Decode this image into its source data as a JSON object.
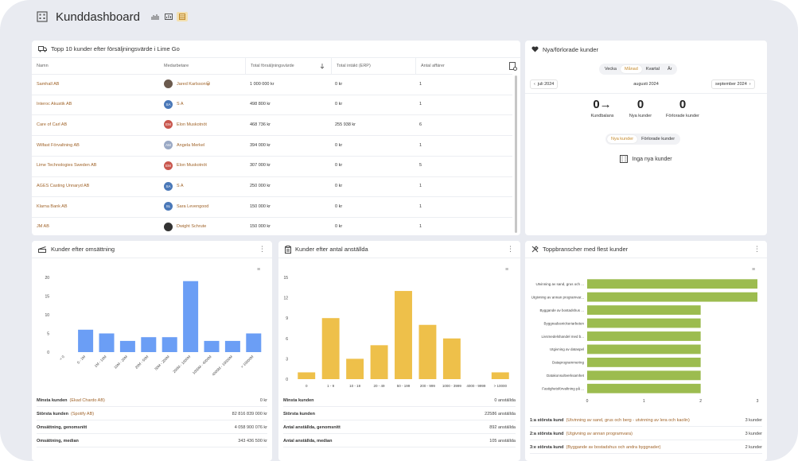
{
  "page": {
    "title": "Kunddashboard"
  },
  "top10": {
    "title": "Topp 10 kunder efter försäljningsvärde i Lime Go",
    "columns": [
      "Namn",
      "Medarbetare",
      "Total försäljningsvärde",
      "Total intäkt (ERP)",
      "Antal affärer"
    ],
    "rows": [
      {
        "name": "Samhall AB",
        "avatar": "",
        "avatar_color": "#6b5a4e",
        "employee": "Jared Karlsson😀",
        "total": "1 000 000 kr",
        "income": "0 kr",
        "deals": "1"
      },
      {
        "name": "Interoc Akustik AB",
        "avatar": "SA",
        "avatar_color": "#4a78b8",
        "employee": "S A",
        "total": "498 800 kr",
        "income": "0 kr",
        "deals": "1"
      },
      {
        "name": "Care of Carl AB",
        "avatar": "EM",
        "avatar_color": "#c9574e",
        "employee": "Elon Muskotnöt",
        "total": "468 736 kr",
        "income": "255 938 kr",
        "deals": "6"
      },
      {
        "name": "Wilfast Förvaltning AB",
        "avatar": "AM",
        "avatar_color": "#9aa9c5",
        "employee": "Angela Merkel",
        "total": "394 000 kr",
        "income": "0 kr",
        "deals": "1"
      },
      {
        "name": "Lime Technologies Sweden AB",
        "avatar": "EM",
        "avatar_color": "#c9574e",
        "employee": "Elon Muskotnöt",
        "total": "307 000 kr",
        "income": "0 kr",
        "deals": "5"
      },
      {
        "name": "AGES Casting Unnaryd AB",
        "avatar": "SA",
        "avatar_color": "#4a78b8",
        "employee": "S A",
        "total": "250 000 kr",
        "income": "0 kr",
        "deals": "1"
      },
      {
        "name": "Klarna Bank AB",
        "avatar": "SL",
        "avatar_color": "#4a78b8",
        "employee": "Sara Levengood",
        "total": "150 000 kr",
        "income": "0 kr",
        "deals": "1"
      },
      {
        "name": "JM AB",
        "avatar": "",
        "avatar_color": "#333333",
        "employee": "Dwight Schrute",
        "total": "150 000 kr",
        "income": "0 kr",
        "deals": "1"
      }
    ]
  },
  "newlost": {
    "title": "Nya/förlorade kunder",
    "periods": [
      "Vecka",
      "Månad",
      "Kvartal",
      "År"
    ],
    "active_period": "Månad",
    "prev": "juli 2024",
    "current": "augusti 2024",
    "next": "september 2024",
    "stats": [
      {
        "value": "0→",
        "label": "Kundbalans"
      },
      {
        "value": "0",
        "label": "Nya kunder"
      },
      {
        "value": "0",
        "label": "Förlorade kunder"
      }
    ],
    "tabs": [
      "Nya kunder",
      "Förlorade kunder"
    ],
    "active_tab": "Nya kunder",
    "empty": "Inga nya kunder"
  },
  "revenue": {
    "title": "Kunder efter omsättning",
    "summary": [
      {
        "label": "Minsta kunden",
        "link": "(Ekad Chardo AB)",
        "value": "0 kr"
      },
      {
        "label": "Största kunden",
        "link": "(Spotify AB)",
        "value": "82 816 839 000 kr"
      },
      {
        "label": "Omsättning, genomsnitt",
        "link": "",
        "value": "4 058 900 076 kr"
      },
      {
        "label": "Omsättning, median",
        "link": "",
        "value": "343 436 500 kr"
      }
    ]
  },
  "employees": {
    "title": "Kunder efter antal anställda",
    "summary": [
      {
        "label": "Minsta kunden",
        "link": "",
        "value": "0 anställda"
      },
      {
        "label": "Största kunden",
        "link": "",
        "value": "22586 anställda"
      },
      {
        "label": "Antal anställda, genomsnitt",
        "link": "",
        "value": "892 anställda"
      },
      {
        "label": "Antal anställda, median",
        "link": "",
        "value": "105 anställda"
      }
    ]
  },
  "industries": {
    "title": "Toppbranscher med flest kunder",
    "summary": [
      {
        "label": "1:a största kund",
        "link": "(Utvinning av sand, grus och berg - utvinning av lera och kaolin)",
        "value": "3 kunder"
      },
      {
        "label": "2:a största kund",
        "link": "(Utgivning av annan programvara)",
        "value": "3 kunder"
      },
      {
        "label": "3:e största kund",
        "link": "(Byggande av bostadshus och andra byggnader)",
        "value": "2 kunder"
      }
    ]
  },
  "chart_data": [
    {
      "type": "bar",
      "categories": [
        "< 0",
        "0 - 1M",
        "1M - 10M",
        "10M - 20M",
        "20M - 50M",
        "50M - 200M",
        "200M - 1000M",
        "1000M - 4000M",
        "4000M - 10000M",
        "> 10000M"
      ],
      "values": [
        0,
        6,
        5,
        3,
        4,
        4,
        19,
        3,
        3,
        5
      ],
      "ylim": [
        0,
        20
      ],
      "yticks": [
        0,
        5,
        10,
        15,
        20
      ],
      "color": "#6b9ef5"
    },
    {
      "type": "bar",
      "categories": [
        "0",
        "1 - 9",
        "10 - 19",
        "20 - 49",
        "50 - 199",
        "200 - 999",
        "1000 - 3999",
        "4000 - 9999",
        "> 10000"
      ],
      "values": [
        1,
        9,
        3,
        5,
        13,
        8,
        6,
        0,
        1
      ],
      "ylim": [
        0,
        15
      ],
      "yticks": [
        0,
        3,
        6,
        9,
        12,
        15
      ],
      "color": "#eec04a"
    },
    {
      "type": "bar",
      "orientation": "horizontal",
      "categories": [
        "Utvinning av sand, grus och ...",
        "Utgivning av annan programvar...",
        "Byggande av bostadshus ...",
        "Byggnadssnickeriarbeten",
        "Livsmedelshandel med b...",
        "Utgivning av dataspel",
        "Dataprogrammering",
        "Datakonsultverksamhet",
        "Fastighetsförvaltning på ..."
      ],
      "values": [
        3,
        3,
        2,
        2,
        2,
        2,
        2,
        2,
        2
      ],
      "xlim": [
        0,
        3
      ],
      "xticks": [
        0,
        1,
        2,
        3
      ],
      "color": "#9cbc4f"
    }
  ]
}
